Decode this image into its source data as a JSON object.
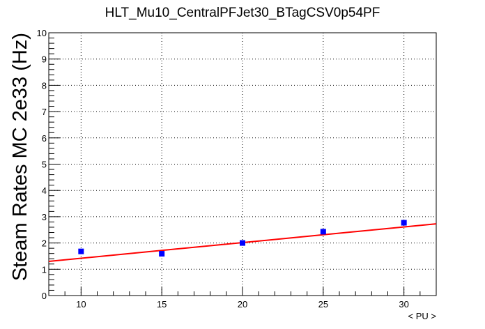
{
  "chart_data": {
    "type": "scatter",
    "title": "HLT_Mu10_CentralPFJet30_BTagCSV0p54PF",
    "xlabel": "< PU >",
    "ylabel": "Steam Rates MC 2e33 (Hz)",
    "xlim": [
      8,
      32
    ],
    "ylim": [
      0,
      10
    ],
    "xticks": [
      10,
      15,
      20,
      25,
      30
    ],
    "yticks": [
      0,
      1,
      2,
      3,
      4,
      5,
      6,
      7,
      8,
      9,
      10
    ],
    "grid": true,
    "series": [
      {
        "type": "scatter",
        "color": "#0000ff",
        "marker": "square",
        "points": [
          {
            "x": 10,
            "y": 1.68
          },
          {
            "x": 15,
            "y": 1.59
          },
          {
            "x": 20,
            "y": 2.0
          },
          {
            "x": 25,
            "y": 2.43
          },
          {
            "x": 30,
            "y": 2.77
          }
        ]
      },
      {
        "type": "line",
        "color": "#ff0000",
        "fit": "linear",
        "points": [
          {
            "x": 8,
            "y": 1.3
          },
          {
            "x": 32,
            "y": 2.73
          }
        ]
      }
    ]
  }
}
